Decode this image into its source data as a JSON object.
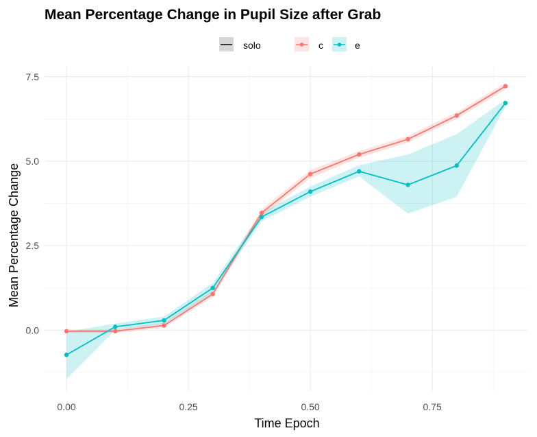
{
  "chart_data": {
    "type": "line",
    "title": "Mean Percentage Change in Pupil Size after Grab",
    "xlabel": "Time Epoch",
    "ylabel": "Mean Percentage Change",
    "xlim": [
      -0.045,
      0.945
    ],
    "ylim": [
      -1.8,
      7.8
    ],
    "x_ticks": [
      0.0,
      0.25,
      0.5,
      0.75
    ],
    "x_tick_labels": [
      "0.00",
      "0.25",
      "0.50",
      "0.75"
    ],
    "y_ticks": [
      0.0,
      2.5,
      5.0,
      7.5
    ],
    "y_tick_labels": [
      "0.0",
      "2.5",
      "5.0",
      "7.5"
    ],
    "grid": true,
    "legend_position": "top",
    "legend": [
      {
        "label": "solo",
        "kind": "band-line",
        "color": "#000000"
      },
      {
        "label": "c",
        "kind": "point-line",
        "color": "#F8766D"
      },
      {
        "label": "e",
        "kind": "point-line",
        "color": "#00BFC4"
      }
    ],
    "x": [
      0.0,
      0.1,
      0.2,
      0.3,
      0.4,
      0.5,
      0.6,
      0.7,
      0.8,
      0.9
    ],
    "series": [
      {
        "name": "c",
        "color": "#F8766D",
        "values": [
          -0.03,
          -0.03,
          0.14,
          1.07,
          3.47,
          4.62,
          5.2,
          5.65,
          6.35,
          7.22
        ],
        "lower": [
          -0.08,
          -0.08,
          0.07,
          0.98,
          3.36,
          4.5,
          5.1,
          5.55,
          6.25,
          7.12
        ],
        "upper": [
          0.02,
          0.02,
          0.22,
          1.17,
          3.58,
          4.74,
          5.3,
          5.75,
          6.45,
          7.32
        ]
      },
      {
        "name": "e",
        "color": "#00BFC4",
        "values": [
          -0.73,
          0.1,
          0.29,
          1.25,
          3.35,
          4.1,
          4.7,
          4.3,
          4.87,
          6.72
        ],
        "lower": [
          -1.45,
          0.0,
          0.18,
          1.1,
          3.22,
          3.95,
          4.55,
          3.45,
          3.95,
          6.62
        ],
        "upper": [
          -0.05,
          0.2,
          0.4,
          1.4,
          3.48,
          4.25,
          4.88,
          5.2,
          5.8,
          6.82
        ]
      }
    ]
  }
}
